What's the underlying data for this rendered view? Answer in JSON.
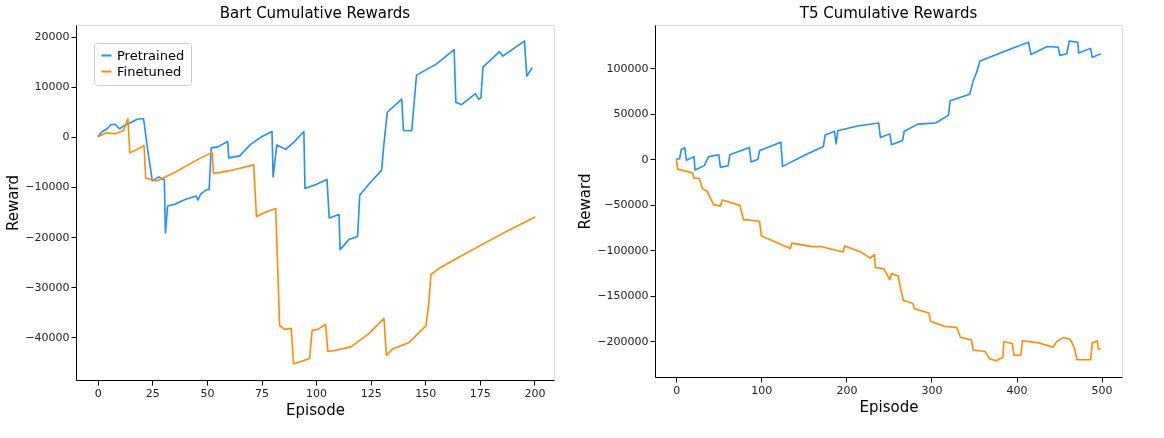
{
  "chart_data": [
    {
      "type": "line",
      "title": "Bart Cumulative Rewards",
      "xlabel": "Episode",
      "ylabel": "Reward",
      "xlim": [
        -9.95,
        208.95
      ],
      "xticks": [
        0,
        25,
        50,
        75,
        100,
        125,
        150,
        175,
        200
      ],
      "ylim": [
        -48500,
        22300
      ],
      "yticks": [
        -40000,
        -30000,
        -20000,
        -10000,
        0,
        10000,
        20000
      ],
      "grid": false,
      "legend": "top left",
      "line_style": "solid",
      "marker": "none",
      "series": [
        {
          "name": "Pretrained",
          "color": "#1e90ff",
          "x": [
            0,
            2,
            4,
            6,
            8,
            10,
            12,
            15,
            18,
            20,
            21,
            23,
            25,
            28,
            30,
            30.5,
            31,
            32,
            35,
            40,
            45,
            46,
            47,
            50,
            51,
            52,
            55,
            59.5,
            60,
            65,
            70,
            75,
            79.8,
            80.3,
            82,
            86,
            90,
            94.4,
            94.9,
            100,
            105,
            106,
            110.5,
            111,
            115,
            119,
            120,
            125,
            130,
            131,
            132.6,
            139.2,
            140,
            143.8,
            146,
            155,
            163.2,
            164,
            166.6,
            173,
            174.4,
            175.5,
            176.4,
            184,
            185.5,
            195.4,
            196.5,
            199
          ],
          "values": [
            0,
            1000,
            1500,
            2400,
            2500,
            1600,
            2200,
            2800,
            3500,
            3600,
            3600,
            -3000,
            -8800,
            -8000,
            -8500,
            -8500,
            -19200,
            -13800,
            -13500,
            -12500,
            -11800,
            -12600,
            -11500,
            -10500,
            -10500,
            -2200,
            -2000,
            -930,
            -4200,
            -3800,
            -1500,
            0,
            1050,
            -8000,
            -1600,
            -2500,
            -1000,
            1050,
            -10300,
            -9500,
            -8500,
            -16200,
            -15500,
            -22500,
            -20500,
            -19900,
            -11600,
            -9000,
            -6700,
            -1700,
            4900,
            7500,
            1250,
            1200,
            12300,
            14500,
            17400,
            6900,
            6400,
            8600,
            7500,
            7800,
            13900,
            17000,
            16100,
            19100,
            12100,
            13800
          ]
        },
        {
          "name": "Finetuned",
          "color": "#ff8c00",
          "x": [
            0,
            4,
            8,
            11.8,
            13.8,
            14.7,
            18,
            21.2,
            22,
            27,
            35.7,
            48,
            52.4,
            53,
            60,
            71.4,
            72.7,
            77,
            81.5,
            83.3,
            85.6,
            88.6,
            89.7,
            97,
            98.2,
            100.8,
            104.3,
            105.4,
            108.4,
            115.9,
            124.3,
            131.1,
            132.2,
            135,
            142.6,
            150.3,
            151.5,
            152.6,
            156.4,
            171.7,
            187,
            200.3
          ],
          "values": [
            0,
            800,
            600,
            1250,
            3600,
            -3200,
            -2500,
            -1700,
            -8200,
            -8800,
            -7000,
            -4000,
            -3200,
            -7300,
            -6800,
            -5600,
            -15900,
            -15000,
            -14300,
            -37600,
            -38400,
            -38200,
            -45300,
            -44200,
            -38600,
            -38400,
            -37400,
            -42800,
            -42600,
            -41900,
            -39200,
            -36200,
            -43600,
            -42300,
            -41000,
            -37700,
            -33700,
            -27500,
            -26200,
            -22500,
            -18900,
            -16000
          ]
        }
      ]
    },
    {
      "type": "line",
      "title": "T5 Cumulative Rewards",
      "xlabel": "Episode",
      "ylabel": "Reward",
      "xlim": [
        -24.95,
        523.95
      ],
      "xticks": [
        0,
        100,
        200,
        300,
        400,
        500
      ],
      "ylim": [
        -239500,
        147500
      ],
      "yticks": [
        -200000,
        -150000,
        -100000,
        -50000,
        0,
        50000,
        100000
      ],
      "grid": false,
      "legend": "top left",
      "line_style": "solid",
      "marker": "none",
      "series": [
        {
          "name": "Pretrained",
          "color": "#1e90ff",
          "x": [
            0,
            4,
            6,
            10,
            12,
            21,
            22,
            33,
            38,
            50,
            52,
            61,
            63,
            86,
            88,
            96,
            98,
            123,
            125,
            152,
            173,
            175,
            186,
            188,
            190,
            213,
            238,
            240,
            251,
            253,
            266,
            268,
            284,
            305,
            320,
            322,
            345,
            349,
            353,
            357,
            384,
            414,
            417,
            436,
            449,
            451,
            459,
            462,
            472,
            473,
            487,
            489,
            499
          ],
          "values": [
            0,
            500,
            10700,
            12700,
            -1200,
            2800,
            -11900,
            -7100,
            2800,
            4800,
            -9100,
            -7100,
            4800,
            12700,
            -3200,
            0,
            9500,
            18700,
            -7900,
            4800,
            13900,
            26600,
            30600,
            16700,
            31300,
            36500,
            39700,
            23800,
            27800,
            15900,
            20600,
            30600,
            38500,
            39700,
            48400,
            64300,
            71400,
            86100,
            95200,
            107900,
            117800,
            128600,
            115100,
            123800,
            123000,
            113900,
            115900,
            129800,
            128600,
            116700,
            121800,
            111900,
            115900
          ]
        },
        {
          "name": "Finetuned",
          "color": "#ff8c00",
          "x": [
            0,
            2,
            19,
            21,
            27,
            31,
            36,
            44,
            52,
            54,
            75,
            79,
            84,
            98,
            100,
            134,
            136,
            159,
            171,
            196,
            198,
            217,
            228,
            233,
            234,
            244,
            251,
            253,
            261,
            263,
            267,
            278,
            280,
            297,
            299,
            315,
            330,
            334,
            347,
            349,
            363,
            368,
            376,
            384,
            385,
            395,
            397,
            405,
            407,
            426,
            443,
            447,
            455,
            463,
            468,
            471,
            487,
            489,
            495,
            496,
            499
          ],
          "values": [
            0,
            -11100,
            -15100,
            -21000,
            -21000,
            -32900,
            -34900,
            -50000,
            -51600,
            -44800,
            -50800,
            -66700,
            -66600,
            -68600,
            -84300,
            -98200,
            -92300,
            -96200,
            -96200,
            -102100,
            -95400,
            -102100,
            -108800,
            -104800,
            -119100,
            -120600,
            -132500,
            -125800,
            -128500,
            -139600,
            -155400,
            -158500,
            -164500,
            -169200,
            -178300,
            -183800,
            -185000,
            -195700,
            -198800,
            -209900,
            -211400,
            -219300,
            -221700,
            -217700,
            -200800,
            -202700,
            -215400,
            -215800,
            -199600,
            -202000,
            -206700,
            -200800,
            -196000,
            -198000,
            -207500,
            -220500,
            -220500,
            -202000,
            -199600,
            -208700,
            -208700
          ]
        }
      ]
    }
  ]
}
